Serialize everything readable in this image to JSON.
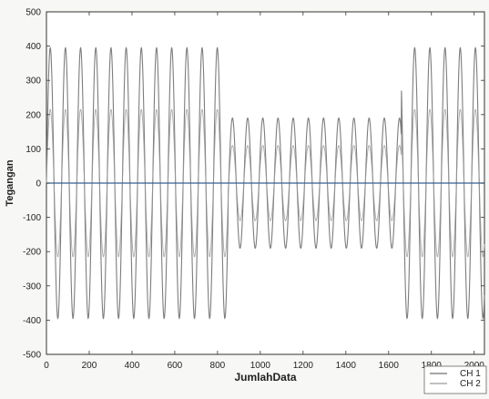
{
  "chart_data": {
    "type": "line",
    "title": "",
    "xlabel": "JumlahData",
    "ylabel": "Tegangan",
    "xlim": [
      0,
      2048
    ],
    "ylim": [
      -500,
      500
    ],
    "grid": false,
    "legend_placement": "bottom-right",
    "x_ticks": [
      "0",
      "200",
      "400",
      "600",
      "800",
      "1000",
      "1200",
      "1400",
      "1600",
      "1800",
      "2000"
    ],
    "y_ticks": [
      "500",
      "400",
      "300",
      "200",
      "100",
      "0",
      "-100",
      "-200",
      "-300",
      "-400",
      "-500"
    ],
    "sample_count": 2048,
    "series": [
      {
        "name": "CH 1",
        "description": "sinusoidal voltage with sag during the middle interval",
        "period_samples": 71,
        "segments": [
          {
            "x_start": 0,
            "x_end": 850,
            "amplitude": 395
          },
          {
            "x_start": 850,
            "x_end": 1660,
            "amplitude": 190
          },
          {
            "x_start": 1660,
            "x_end": 2048,
            "amplitude": 395
          }
        ]
      },
      {
        "name": "CH 2",
        "description": "sinusoidal current with reduced amplitude during the middle interval",
        "period_samples": 71,
        "segments": [
          {
            "x_start": 0,
            "x_end": 850,
            "amplitude": 215
          },
          {
            "x_start": 850,
            "x_end": 1660,
            "amplitude": 110
          },
          {
            "x_start": 1660,
            "x_end": 2048,
            "amplitude": 215
          }
        ]
      }
    ]
  },
  "colors": {
    "plot_background": "#ffffff",
    "axis": "#333333",
    "ch1": "#6f6f6f",
    "ch2": "#9a9a9a",
    "zero_line": "#355f92"
  }
}
